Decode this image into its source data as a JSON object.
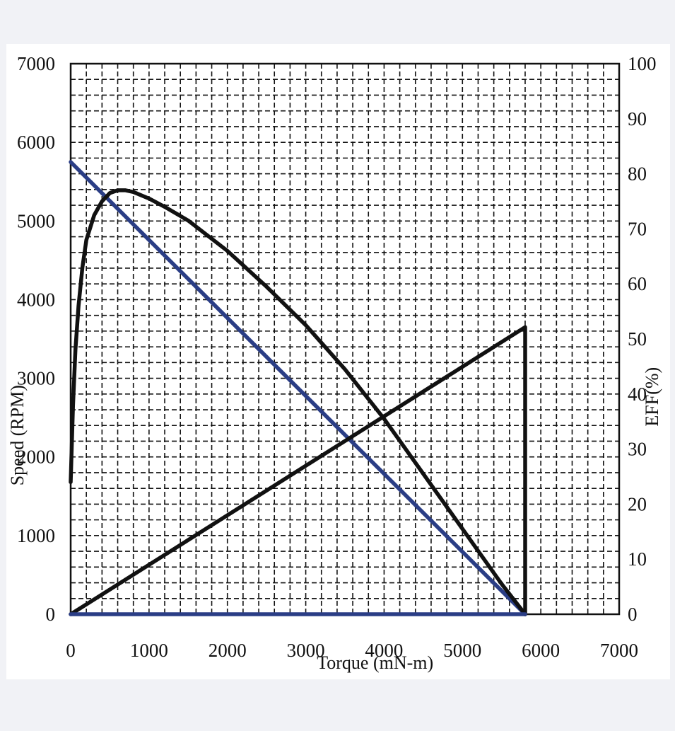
{
  "chart_data": {
    "type": "line",
    "title": "",
    "xlabel": "Torque (mN-m)",
    "ylabel": "Speed (RPM)",
    "y2label": "EFF(%)",
    "xlim": [
      0,
      7000
    ],
    "ylim": [
      0,
      7000
    ],
    "y2lim": [
      0,
      100
    ],
    "xticks": [
      "0",
      "1000",
      "2000",
      "3000",
      "4000",
      "5000",
      "6000",
      "7000"
    ],
    "yticks": [
      "0",
      "1000",
      "2000",
      "3000",
      "4000",
      "5000",
      "6000",
      "7000"
    ],
    "y2ticks": [
      "0",
      "10",
      "20",
      "30",
      "40",
      "50",
      "60",
      "70",
      "80",
      "90",
      "100"
    ],
    "grid": true,
    "series": [
      {
        "color": "#2a3d85",
        "axis": "left",
        "x": [
          0,
          5800
        ],
        "y": [
          5750,
          0
        ]
      },
      {
        "color": "#111111",
        "axis": "right",
        "x": [
          0,
          30,
          60,
          100,
          150,
          200,
          300,
          400,
          500,
          600,
          700,
          800,
          1000,
          1200,
          1500,
          2000,
          2500,
          3000,
          3500,
          4000,
          4500,
          5000,
          5500,
          5800,
          5800
        ],
        "y": [
          24,
          38,
          48,
          56,
          63,
          68,
          72.5,
          75,
          76.5,
          77,
          77,
          76.7,
          75.5,
          74,
          71.5,
          66,
          59.5,
          52.5,
          44.5,
          35.5,
          25.5,
          15.5,
          5.5,
          0,
          0
        ]
      },
      {
        "color": "#111111",
        "axis": "left",
        "x": [
          0,
          5800,
          5800
        ],
        "y": [
          0,
          3650,
          0
        ]
      },
      {
        "color": "#2a3d85",
        "axis": "left",
        "x": [
          0,
          5800
        ],
        "y": [
          0,
          0
        ]
      }
    ]
  }
}
